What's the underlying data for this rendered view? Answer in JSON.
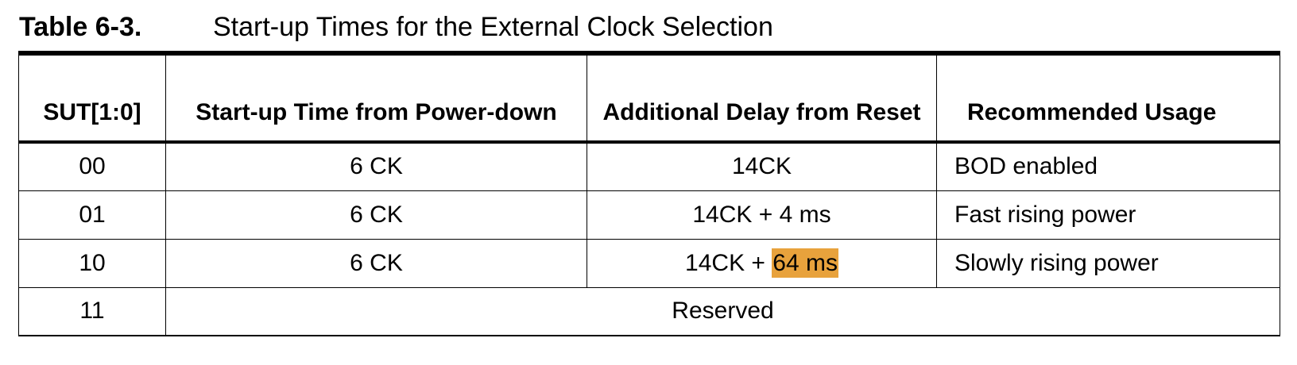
{
  "caption": {
    "number": "Table 6-3.",
    "title": "Start-up Times for the External Clock Selection"
  },
  "table": {
    "headers": [
      "SUT[1:0]",
      "Start-up Time from Power-down",
      "Additional Delay from Reset",
      "Recommended Usage"
    ],
    "rows": [
      {
        "sut": "00",
        "startup": "6 CK",
        "delay_prefix": "14CK",
        "delay_highlight": "",
        "usage": "BOD enabled"
      },
      {
        "sut": "01",
        "startup": "6 CK",
        "delay_prefix": "14CK + 4 ms",
        "delay_highlight": "",
        "usage": "Fast rising power"
      },
      {
        "sut": "10",
        "startup": "6 CK",
        "delay_prefix": "14CK + ",
        "delay_highlight": "64 ms",
        "usage": "Slowly rising power"
      }
    ],
    "reserved_row": {
      "sut": "11",
      "text": "Reserved"
    }
  },
  "colors": {
    "highlight": "#e8a23c",
    "border": "#000000"
  }
}
